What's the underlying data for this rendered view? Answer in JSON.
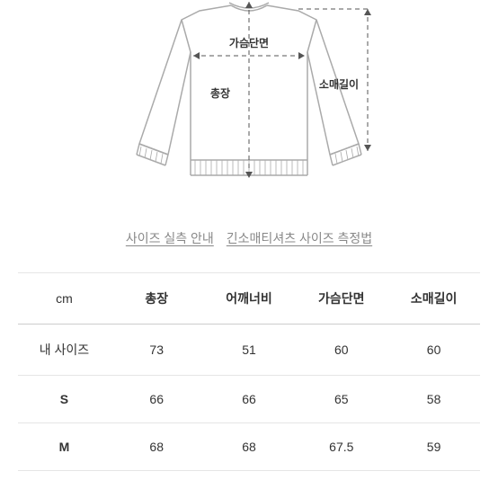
{
  "diagram": {
    "label_chest": "가슴단면",
    "label_length": "총장",
    "label_sleeve": "소매길이",
    "stroke_color": "#aaaaaa",
    "dash_color": "#888888",
    "text_color": "#333333"
  },
  "links": {
    "guide": "사이즈 실측 안내",
    "method": "긴소매티셔츠 사이즈 측정법"
  },
  "table": {
    "unit": "cm",
    "columns": [
      "총장",
      "어깨너비",
      "가슴단면",
      "소매길이"
    ],
    "rows": [
      {
        "label": "내 사이즈",
        "values": [
          "73",
          "51",
          "60",
          "60"
        ],
        "class": "mysize"
      },
      {
        "label": "S",
        "values": [
          "66",
          "66",
          "65",
          "58"
        ],
        "class": ""
      },
      {
        "label": "M",
        "values": [
          "68",
          "68",
          "67.5",
          "59"
        ],
        "class": ""
      }
    ]
  }
}
